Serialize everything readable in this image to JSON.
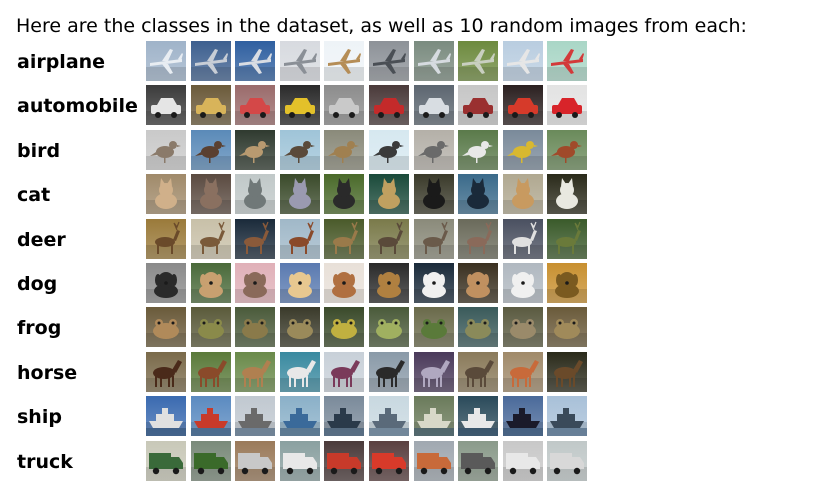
{
  "intro_text": "Here are the classes in the dataset, as well as 10 random images from each:",
  "classes": [
    {
      "label": "airplane",
      "thumbs": [
        {
          "subject": "airplane-icon",
          "bg": "#9fb3c9",
          "accent": "#e8edf2"
        },
        {
          "subject": "airplane-icon",
          "bg": "#3d5f8f",
          "accent": "#c8ced6"
        },
        {
          "subject": "airplane-icon",
          "bg": "#2f5fa0",
          "accent": "#d9dde3"
        },
        {
          "subject": "airplane-icon",
          "bg": "#d7dadf",
          "accent": "#8a8f96"
        },
        {
          "subject": "airplane-icon",
          "bg": "#eef3f7",
          "accent": "#b58d56"
        },
        {
          "subject": "airplane-icon",
          "bg": "#8d9298",
          "accent": "#4a4f55"
        },
        {
          "subject": "airplane-icon",
          "bg": "#7a8b7f",
          "accent": "#d6dbe0"
        },
        {
          "subject": "airplane-icon",
          "bg": "#6d8a3e",
          "accent": "#c9cfc0"
        },
        {
          "subject": "airplane-icon",
          "bg": "#b9cde0",
          "accent": "#e6e6e6"
        },
        {
          "subject": "airplane-icon",
          "bg": "#a9d6c6",
          "accent": "#d33a3a"
        }
      ]
    },
    {
      "label": "automobile",
      "thumbs": [
        {
          "subject": "car-icon",
          "bg": "#3b3b3b",
          "accent": "#e5e5e5"
        },
        {
          "subject": "car-icon",
          "bg": "#6b5a3a",
          "accent": "#d8b45a"
        },
        {
          "subject": "car-icon",
          "bg": "#9a6b6b",
          "accent": "#d44848"
        },
        {
          "subject": "car-icon",
          "bg": "#2a2a2a",
          "accent": "#e3c12a"
        },
        {
          "subject": "car-icon",
          "bg": "#8c8c8c",
          "accent": "#c9c9c9"
        },
        {
          "subject": "car-icon",
          "bg": "#4a3a3a",
          "accent": "#c42a2a"
        },
        {
          "subject": "car-icon",
          "bg": "#5c6670",
          "accent": "#d8dde2"
        },
        {
          "subject": "car-icon",
          "bg": "#c6c6c6",
          "accent": "#9a3030"
        },
        {
          "subject": "car-icon",
          "bg": "#2b2020",
          "accent": "#d63a2a"
        },
        {
          "subject": "car-icon",
          "bg": "#e3e3e3",
          "accent": "#d8242a"
        }
      ]
    },
    {
      "label": "bird",
      "thumbs": [
        {
          "subject": "bird-icon",
          "bg": "#c9c9c9",
          "accent": "#8a7a6a"
        },
        {
          "subject": "bird-icon",
          "bg": "#5a8ab8",
          "accent": "#5a4030"
        },
        {
          "subject": "bird-icon",
          "bg": "#2f3a2f",
          "accent": "#b89a70"
        },
        {
          "subject": "bird-icon",
          "bg": "#9fc4d8",
          "accent": "#5a4a3a"
        },
        {
          "subject": "bird-icon",
          "bg": "#8a8a7a",
          "accent": "#a08050"
        },
        {
          "subject": "bird-icon",
          "bg": "#d6e8f0",
          "accent": "#3a3a3a"
        },
        {
          "subject": "bird-icon",
          "bg": "#b4b0a8",
          "accent": "#6a6a6a"
        },
        {
          "subject": "bird-icon",
          "bg": "#5a7a4a",
          "accent": "#e8e8e8"
        },
        {
          "subject": "bird-icon",
          "bg": "#7a8a9a",
          "accent": "#d8b830"
        },
        {
          "subject": "bird-icon",
          "bg": "#6a8a5a",
          "accent": "#a04a2a"
        }
      ]
    },
    {
      "label": "cat",
      "thumbs": [
        {
          "subject": "cat-icon",
          "bg": "#a08a6a",
          "accent": "#d0b08a"
        },
        {
          "subject": "cat-icon",
          "bg": "#5a4a40",
          "accent": "#8a7060"
        },
        {
          "subject": "cat-icon",
          "bg": "#c0c8c8",
          "accent": "#707878"
        },
        {
          "subject": "cat-icon",
          "bg": "#3a4a2a",
          "accent": "#9a9ab0"
        },
        {
          "subject": "cat-icon",
          "bg": "#4a6a2a",
          "accent": "#2a2a2a"
        },
        {
          "subject": "cat-icon",
          "bg": "#1a4a3a",
          "accent": "#c0a060"
        },
        {
          "subject": "cat-icon",
          "bg": "#3a3a2a",
          "accent": "#1a1a1a"
        },
        {
          "subject": "cat-icon",
          "bg": "#3a6a8a",
          "accent": "#1a2a3a"
        },
        {
          "subject": "cat-icon",
          "bg": "#b0a890",
          "accent": "#c89a60"
        },
        {
          "subject": "cat-icon",
          "bg": "#2a2a1a",
          "accent": "#e8e8e0"
        }
      ]
    },
    {
      "label": "deer",
      "thumbs": [
        {
          "subject": "deer-icon",
          "bg": "#9a7a3a",
          "accent": "#6a4a2a"
        },
        {
          "subject": "deer-icon",
          "bg": "#c8c0a8",
          "accent": "#7a5a3a"
        },
        {
          "subject": "deer-icon",
          "bg": "#1a2a3a",
          "accent": "#8a5a3a"
        },
        {
          "subject": "deer-icon",
          "bg": "#a0b8c8",
          "accent": "#8a4a2a"
        },
        {
          "subject": "deer-icon",
          "bg": "#4a5a2a",
          "accent": "#9a7a4a"
        },
        {
          "subject": "deer-icon",
          "bg": "#7a7a4a",
          "accent": "#5a4a3a"
        },
        {
          "subject": "deer-icon",
          "bg": "#8a8a7a",
          "accent": "#6a5a4a"
        },
        {
          "subject": "deer-icon",
          "bg": "#6a6a5a",
          "accent": "#8a6a5a"
        },
        {
          "subject": "deer-icon",
          "bg": "#4a5060",
          "accent": "#e0e0e0"
        },
        {
          "subject": "deer-icon",
          "bg": "#3a5a2a",
          "accent": "#6a7a3a"
        }
      ]
    },
    {
      "label": "dog",
      "thumbs": [
        {
          "subject": "dog-icon",
          "bg": "#8a8a8a",
          "accent": "#2a2a2a"
        },
        {
          "subject": "dog-icon",
          "bg": "#4a6a3a",
          "accent": "#c8a070"
        },
        {
          "subject": "dog-icon",
          "bg": "#e0b0b8",
          "accent": "#8a6a5a"
        },
        {
          "subject": "dog-icon",
          "bg": "#5a7ab0",
          "accent": "#e8c890"
        },
        {
          "subject": "dog-icon",
          "bg": "#e8e0d8",
          "accent": "#b07040"
        },
        {
          "subject": "dog-icon",
          "bg": "#2a2a2a",
          "accent": "#b08040"
        },
        {
          "subject": "dog-icon",
          "bg": "#1a2a3a",
          "accent": "#f0f0f0"
        },
        {
          "subject": "dog-icon",
          "bg": "#3a3020",
          "accent": "#c09060"
        },
        {
          "subject": "dog-icon",
          "bg": "#b0b8c0",
          "accent": "#f0f0f0"
        },
        {
          "subject": "dog-icon",
          "bg": "#c89030",
          "accent": "#7a5a20"
        }
      ]
    },
    {
      "label": "frog",
      "thumbs": [
        {
          "subject": "frog-icon",
          "bg": "#6a5a3a",
          "accent": "#b08a5a"
        },
        {
          "subject": "frog-icon",
          "bg": "#5a5a3a",
          "accent": "#8a8a4a"
        },
        {
          "subject": "frog-icon",
          "bg": "#4a5a3a",
          "accent": "#8a7a4a"
        },
        {
          "subject": "frog-icon",
          "bg": "#3a3a2a",
          "accent": "#9a8a5a"
        },
        {
          "subject": "frog-icon",
          "bg": "#3a4a2a",
          "accent": "#c0b040"
        },
        {
          "subject": "frog-icon",
          "bg": "#4a5a3a",
          "accent": "#a0b060"
        },
        {
          "subject": "frog-icon",
          "bg": "#6a6a4a",
          "accent": "#5a7a3a"
        },
        {
          "subject": "frog-icon",
          "bg": "#3a5a5a",
          "accent": "#8a8a5a"
        },
        {
          "subject": "frog-icon",
          "bg": "#5a5a40",
          "accent": "#9a8a6a"
        },
        {
          "subject": "frog-icon",
          "bg": "#6a5a3a",
          "accent": "#a08a5a"
        }
      ]
    },
    {
      "label": "horse",
      "thumbs": [
        {
          "subject": "horse-icon",
          "bg": "#7a6a4a",
          "accent": "#4a2a1a"
        },
        {
          "subject": "horse-icon",
          "bg": "#5a7a3a",
          "accent": "#8a4a2a"
        },
        {
          "subject": "horse-icon",
          "bg": "#6a8a4a",
          "accent": "#b08050"
        },
        {
          "subject": "horse-icon",
          "bg": "#3a8aa0",
          "accent": "#e8e8e8"
        },
        {
          "subject": "horse-icon",
          "bg": "#c8d0d8",
          "accent": "#7a3a5a"
        },
        {
          "subject": "horse-icon",
          "bg": "#8a9aa8",
          "accent": "#2a2a2a"
        },
        {
          "subject": "horse-icon",
          "bg": "#4a3a5a",
          "accent": "#b0a8c0"
        },
        {
          "subject": "horse-icon",
          "bg": "#8a7a5a",
          "accent": "#5a4a3a"
        },
        {
          "subject": "horse-icon",
          "bg": "#a08a6a",
          "accent": "#c86a3a"
        },
        {
          "subject": "horse-icon",
          "bg": "#2a2a1a",
          "accent": "#6a4a2a"
        }
      ]
    },
    {
      "label": "ship",
      "thumbs": [
        {
          "subject": "ship-icon",
          "bg": "#3a6ab0",
          "accent": "#e0e0e0"
        },
        {
          "subject": "ship-icon",
          "bg": "#5a8ac0",
          "accent": "#c83a2a"
        },
        {
          "subject": "ship-icon",
          "bg": "#c0c8d0",
          "accent": "#6a6a6a"
        },
        {
          "subject": "ship-icon",
          "bg": "#8ab0c8",
          "accent": "#3a6a9a"
        },
        {
          "subject": "ship-icon",
          "bg": "#7a8a9a",
          "accent": "#2a3a4a"
        },
        {
          "subject": "ship-icon",
          "bg": "#c8d8e0",
          "accent": "#5a6a7a"
        },
        {
          "subject": "ship-icon",
          "bg": "#6a7a5a",
          "accent": "#d8d8c8"
        },
        {
          "subject": "ship-icon",
          "bg": "#2a4a5a",
          "accent": "#e8e8e8"
        },
        {
          "subject": "ship-icon",
          "bg": "#4a6a9a",
          "accent": "#1a1a2a"
        },
        {
          "subject": "ship-icon",
          "bg": "#a8c0d8",
          "accent": "#3a4a5a"
        }
      ]
    },
    {
      "label": "truck",
      "thumbs": [
        {
          "subject": "truck-icon",
          "bg": "#c8c8b8",
          "accent": "#3a6a3a"
        },
        {
          "subject": "truck-icon",
          "bg": "#7a8a7a",
          "accent": "#3a6a2a"
        },
        {
          "subject": "truck-icon",
          "bg": "#9a7a5a",
          "accent": "#c8c8c8"
        },
        {
          "subject": "truck-icon",
          "bg": "#8aa0a0",
          "accent": "#e8e8e8"
        },
        {
          "subject": "truck-icon",
          "bg": "#4a3a3a",
          "accent": "#c83a2a"
        },
        {
          "subject": "truck-icon",
          "bg": "#5a4040",
          "accent": "#d83a2a"
        },
        {
          "subject": "truck-icon",
          "bg": "#a0a8b0",
          "accent": "#c86a3a"
        },
        {
          "subject": "truck-icon",
          "bg": "#8a9a8a",
          "accent": "#5a5a5a"
        },
        {
          "subject": "truck-icon",
          "bg": "#c8c8c8",
          "accent": "#e8e8e8"
        },
        {
          "subject": "truck-icon",
          "bg": "#c0c8c8",
          "accent": "#d8d8d8"
        }
      ]
    }
  ]
}
